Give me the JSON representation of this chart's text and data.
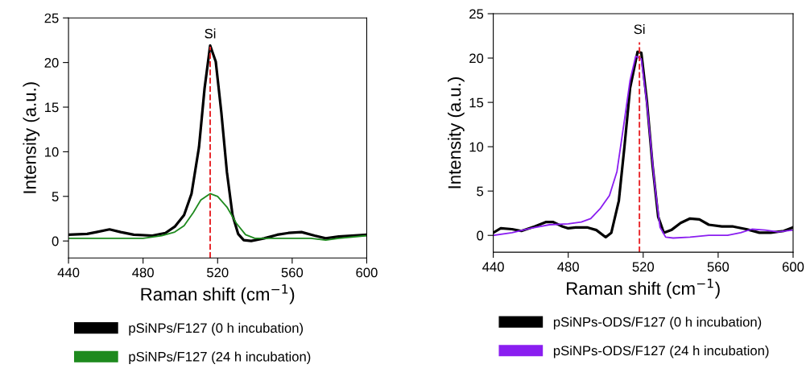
{
  "chart_data": [
    {
      "type": "line",
      "xlabel": "Raman shift (cm$^{−1}$)",
      "ylabel": "Intensity (a.u.)",
      "xlim": [
        440,
        600
      ],
      "xticks": [
        440,
        480,
        520,
        560,
        600
      ],
      "ylim": [
        -1.9,
        25
      ],
      "yticks": [
        0,
        5,
        10,
        15,
        20,
        25
      ],
      "legend": "bottom",
      "grid": false,
      "marker": "none",
      "line_style": "solid",
      "ref_lines": [
        {
          "axis": "x",
          "value": 516,
          "label": "Si",
          "color": "#e8262a",
          "line_style": "dashed"
        }
      ],
      "series": [
        {
          "name": "pSiNPs/F127 (0 h incubation)",
          "color": "#000000",
          "x": [
            440,
            450,
            455,
            462,
            468,
            475,
            485,
            492,
            497,
            502,
            506,
            510,
            513,
            516,
            519,
            522,
            525,
            528,
            531,
            534,
            538,
            545,
            552,
            558,
            565,
            572,
            578,
            585,
            592,
            600
          ],
          "values": [
            0.7,
            0.8,
            1.0,
            1.3,
            1.0,
            0.7,
            0.6,
            0.9,
            1.6,
            2.9,
            5.3,
            10.5,
            17.1,
            21.9,
            20.1,
            14.4,
            7.7,
            2.9,
            0.8,
            0.1,
            0.0,
            0.3,
            0.7,
            0.9,
            1.0,
            0.6,
            0.3,
            0.5,
            0.6,
            0.7
          ]
        },
        {
          "name": "pSiNPs/F127 (24 h incubation)",
          "color": "#1e8a1e",
          "x": [
            440,
            460,
            480,
            490,
            497,
            502,
            507,
            511,
            516,
            520,
            525,
            530,
            535,
            540,
            550,
            560,
            570,
            578,
            585,
            600
          ],
          "values": [
            0.3,
            0.3,
            0.3,
            0.6,
            1.0,
            1.7,
            3.2,
            4.6,
            5.3,
            5.0,
            3.8,
            2.0,
            0.7,
            0.3,
            0.3,
            0.3,
            0.3,
            0.1,
            0.3,
            0.6
          ]
        }
      ]
    },
    {
      "type": "line",
      "xlabel": "Raman shift (cm$^{−1}$)",
      "ylabel": "Intensity (a.u.)",
      "xlim": [
        440,
        600
      ],
      "xticks": [
        440,
        480,
        520,
        560,
        600
      ],
      "ylim": [
        -1.9,
        25
      ],
      "yticks": [
        0,
        5,
        10,
        15,
        20,
        25
      ],
      "legend": "bottom",
      "grid": false,
      "marker": "none",
      "line_style": "solid",
      "ref_lines": [
        {
          "axis": "x",
          "value": 518,
          "label": "Si",
          "color": "#e8262a",
          "line_style": "dashed"
        }
      ],
      "series": [
        {
          "name": "pSiNPs-ODS/F127 (0 h incubation)",
          "color": "#000000",
          "x": [
            440,
            444,
            450,
            455,
            462,
            468,
            472,
            477,
            480,
            484,
            490,
            495,
            500,
            503,
            507,
            510,
            513,
            517,
            519,
            522,
            525,
            528,
            531,
            535,
            540,
            545,
            550,
            555,
            562,
            568,
            575,
            582,
            588,
            595,
            600
          ],
          "values": [
            0.3,
            0.8,
            0.7,
            0.5,
            1.0,
            1.5,
            1.5,
            1.0,
            0.8,
            0.9,
            0.9,
            0.6,
            -0.2,
            0.3,
            3.9,
            10.0,
            16.6,
            20.7,
            20.6,
            15.1,
            7.9,
            2.1,
            0.3,
            0.6,
            1.4,
            1.9,
            1.8,
            1.2,
            1.0,
            1.0,
            0.7,
            0.3,
            0.3,
            0.5,
            0.9
          ]
        },
        {
          "name": "pSiNPs-ODS/F127 (24 h incubation)",
          "color": "#8a1ef0",
          "x": [
            440,
            450,
            460,
            470,
            480,
            487,
            492,
            497,
            502,
            506,
            510,
            513,
            516,
            519,
            522,
            526,
            529,
            532,
            536,
            545,
            555,
            565,
            572,
            578,
            585,
            592,
            600
          ],
          "values": [
            0.0,
            0.3,
            0.8,
            1.2,
            1.3,
            1.5,
            1.9,
            3.0,
            4.5,
            7.2,
            13.0,
            17.5,
            20.2,
            19.9,
            14.8,
            6.0,
            0.9,
            -0.2,
            -0.3,
            -0.2,
            0.0,
            0.0,
            0.3,
            0.7,
            0.6,
            0.4,
            0.6
          ]
        }
      ]
    }
  ]
}
